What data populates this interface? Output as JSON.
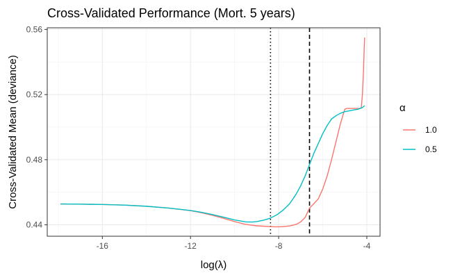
{
  "chart_data": {
    "type": "line",
    "title": "Cross-Validated Performance (Mort. 5 years)",
    "xlabel": "log(λ)",
    "ylabel": "Cross-Validated Mean (deviance)",
    "xlim": [
      -18.5,
      -3.4
    ],
    "ylim": [
      0.433,
      0.561
    ],
    "x_ticks": [
      -16,
      -12,
      -8,
      -4
    ],
    "x_tick_labels": [
      "-16",
      "-12",
      "-8",
      "-4"
    ],
    "y_ticks": [
      0.44,
      0.48,
      0.52,
      0.56
    ],
    "y_tick_labels": [
      "0.44",
      "0.48",
      "0.52",
      "0.56"
    ],
    "grid": true,
    "legend": {
      "title": "α",
      "position": "right"
    },
    "vlines": [
      {
        "x": -8.37,
        "style": "dotted"
      },
      {
        "x": -6.6,
        "style": "dashed"
      }
    ],
    "series": [
      {
        "name": "1.0",
        "color": "#F8766D",
        "x": [
          -17.9,
          -17,
          -16,
          -15,
          -14,
          -13,
          -12,
          -11.5,
          -11,
          -10.5,
          -10,
          -9.5,
          -9,
          -8.5,
          -8.2,
          -8,
          -7.8,
          -7.5,
          -7.2,
          -7.0,
          -6.8,
          -6.6,
          -6.4,
          -6.2,
          -6.0,
          -5.8,
          -5.6,
          -5.4,
          -5.2,
          -5.0,
          -4.9,
          -4.5,
          -4.3,
          -4.25,
          -4.2,
          -4.15,
          -4.12,
          -4.1
        ],
        "values": [
          0.4528,
          0.4527,
          0.4525,
          0.4521,
          0.4514,
          0.4503,
          0.4487,
          0.4474,
          0.4458,
          0.444,
          0.442,
          0.4403,
          0.4394,
          0.439,
          0.4388,
          0.4388,
          0.4389,
          0.4393,
          0.4403,
          0.4418,
          0.4445,
          0.4503,
          0.453,
          0.456,
          0.462,
          0.47,
          0.48,
          0.491,
          0.502,
          0.511,
          0.5115,
          0.5115,
          0.5115,
          0.512,
          0.52,
          0.535,
          0.548,
          0.555
        ]
      },
      {
        "name": "0.5",
        "color": "#00BFC4",
        "x": [
          -17.9,
          -17,
          -16,
          -15,
          -14,
          -13,
          -12,
          -11.5,
          -11,
          -10.5,
          -10,
          -9.5,
          -9.2,
          -9.0,
          -8.7,
          -8.4,
          -8.1,
          -7.8,
          -7.5,
          -7.2,
          -7.0,
          -6.8,
          -6.6,
          -6.4,
          -6.2,
          -6.0,
          -5.8,
          -5.6,
          -5.4,
          -5.2,
          -5.0,
          -4.8,
          -4.6,
          -4.4,
          -4.2,
          -4.1
        ],
        "values": [
          0.4528,
          0.4527,
          0.4525,
          0.4521,
          0.4514,
          0.4503,
          0.4488,
          0.4477,
          0.4463,
          0.4447,
          0.443,
          0.4418,
          0.4417,
          0.442,
          0.4428,
          0.444,
          0.446,
          0.449,
          0.453,
          0.459,
          0.464,
          0.47,
          0.477,
          0.484,
          0.49,
          0.496,
          0.501,
          0.505,
          0.507,
          0.5085,
          0.5095,
          0.51,
          0.5105,
          0.511,
          0.512,
          0.5132
        ]
      }
    ]
  }
}
